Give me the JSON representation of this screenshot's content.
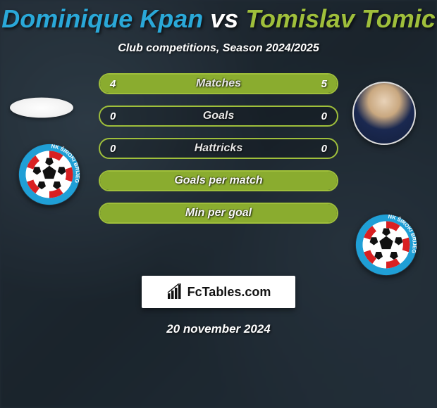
{
  "title": {
    "player1": "Dominique Kpan",
    "vs": "vs",
    "player2": "Tomislav Tomic",
    "color_player1": "#2aa8d8",
    "color_vs": "#ffffff",
    "color_player2": "#9fbf3b"
  },
  "subtitle": "Club competitions, Season 2024/2025",
  "players": {
    "left": {
      "name": "Dominique Kpan"
    },
    "right": {
      "name": "Tomislav Tomic"
    }
  },
  "club_logo": {
    "outer_ring": "#1f9fd6",
    "text_color": "#ffffff",
    "checker_red": "#d92022",
    "checker_white": "#ffffff",
    "ball_black": "#111111",
    "ball_white": "#ffffff",
    "label": "NK ŠIROKI BRIJEG"
  },
  "bars": {
    "fill_color": "#8aac2f",
    "empty_color": "rgba(0,0,0,0.18)",
    "border_color": "#9fbf3b",
    "rows": [
      {
        "label": "Matches",
        "left_val": "4",
        "right_val": "5",
        "left_pct": 44,
        "right_pct": 56
      },
      {
        "label": "Goals",
        "left_val": "0",
        "right_val": "0",
        "left_pct": 0,
        "right_pct": 0
      },
      {
        "label": "Hattricks",
        "left_val": "0",
        "right_val": "0",
        "left_pct": 0,
        "right_pct": 0
      },
      {
        "label": "Goals per match",
        "left_val": "",
        "right_val": "",
        "left_pct": 100,
        "right_pct": 0,
        "full": true
      },
      {
        "label": "Min per goal",
        "left_val": "",
        "right_val": "",
        "left_pct": 100,
        "right_pct": 0,
        "full": true
      }
    ]
  },
  "footer": {
    "brand": "FcTables.com",
    "date": "20 november 2024"
  }
}
